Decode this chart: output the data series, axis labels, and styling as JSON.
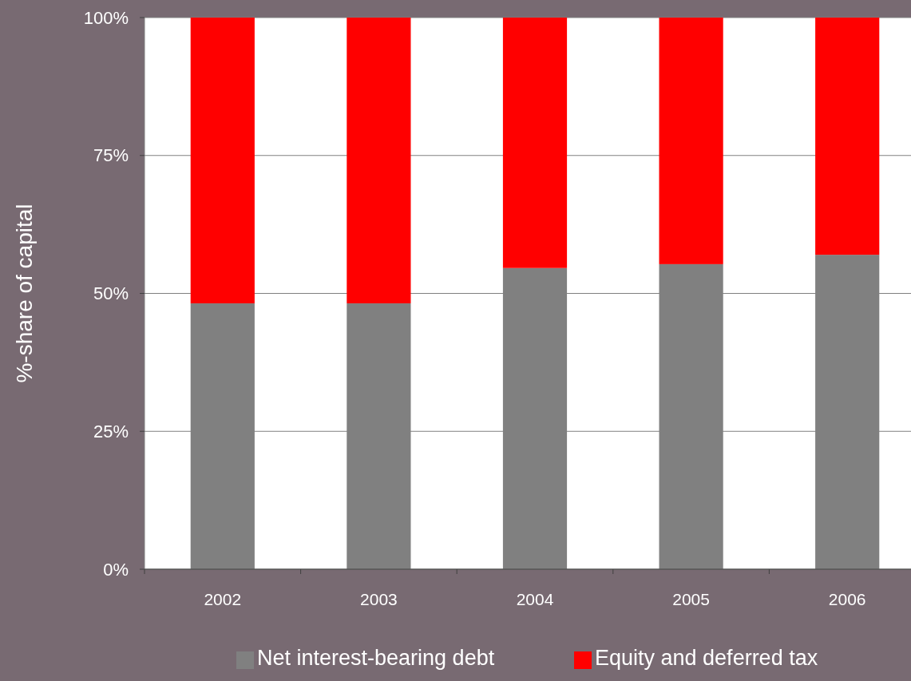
{
  "chart_data": {
    "type": "bar",
    "stacked": true,
    "ylabel": "%-share of capital",
    "categories": [
      "2002",
      "2003",
      "2004",
      "2005",
      "2006"
    ],
    "series": [
      {
        "name": "Net interest-bearing debt",
        "color": "#808080",
        "values": [
          48.2,
          48.2,
          54.6,
          55.3,
          57.0
        ]
      },
      {
        "name": "Equity and deferred tax",
        "color": "#ff0000",
        "values": [
          51.8,
          51.8,
          45.4,
          44.7,
          43.0
        ]
      }
    ],
    "ylim": [
      0,
      100
    ],
    "yticks": [
      {
        "value": 0,
        "label": "0%"
      },
      {
        "value": 25,
        "label": "25%"
      },
      {
        "value": 50,
        "label": "50%"
      },
      {
        "value": 75,
        "label": "75%"
      },
      {
        "value": 100,
        "label": "100%"
      }
    ],
    "grid": "y",
    "legend": "bottom"
  }
}
